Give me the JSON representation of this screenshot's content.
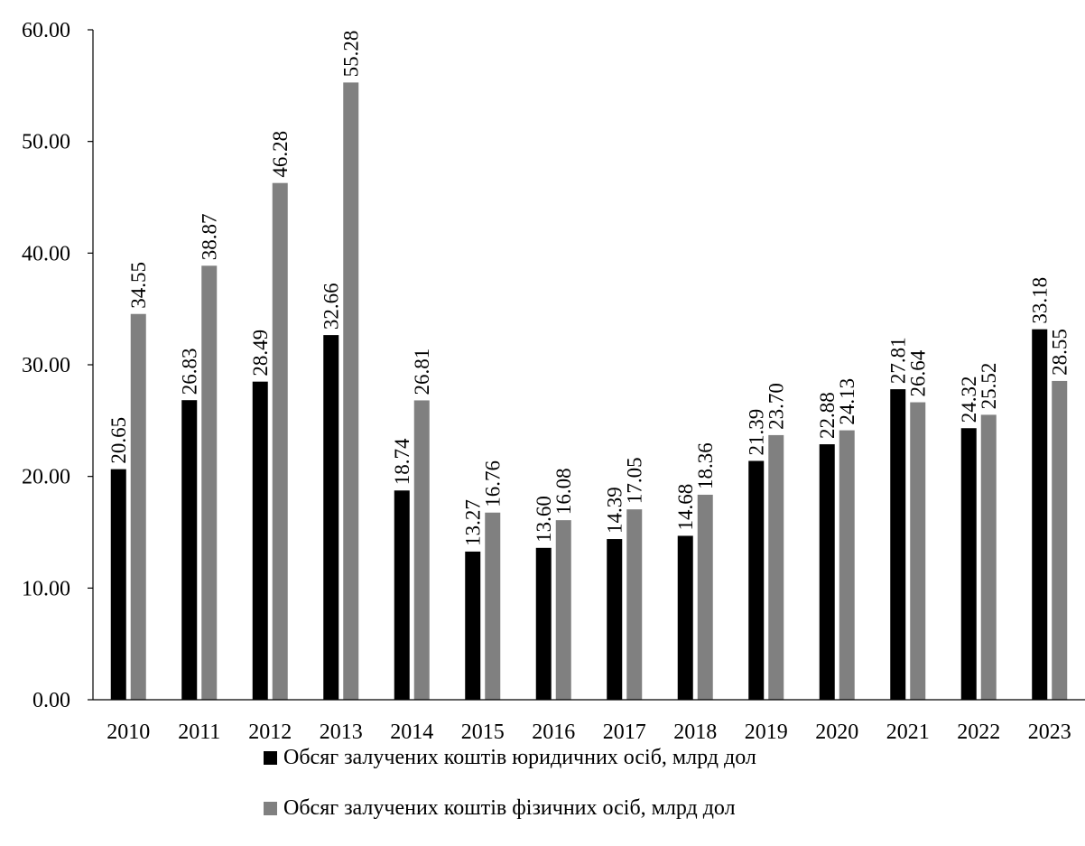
{
  "chart_data": {
    "type": "bar",
    "title": "",
    "xlabel": "",
    "ylabel": "",
    "ylim": [
      0,
      60
    ],
    "yticks": [
      "0.00",
      "10.00",
      "20.00",
      "30.00",
      "40.00",
      "50.00",
      "60.00"
    ],
    "categories": [
      "2010",
      "2011",
      "2012",
      "2013",
      "2014",
      "2015",
      "2016",
      "2017",
      "2018",
      "2019",
      "2020",
      "2021",
      "2022",
      "2023"
    ],
    "series": [
      {
        "name": "Обсяг залучених коштів юридичних осіб, млрд дол",
        "color": "#000000",
        "values": [
          20.65,
          26.83,
          28.49,
          32.66,
          18.74,
          13.27,
          13.6,
          14.39,
          14.68,
          21.39,
          22.88,
          27.81,
          24.32,
          33.18
        ],
        "labels": [
          "20.65",
          "26.83",
          "28.49",
          "32.66",
          "18.74",
          "13.27",
          "13.60",
          "14.39",
          "14.68",
          "21.39",
          "22.88",
          "27.81",
          "24.32",
          "33.18"
        ]
      },
      {
        "name": "Обсяг залучених коштів фізичних осіб, млрд дол",
        "color": "#808080",
        "values": [
          34.55,
          38.87,
          46.28,
          55.28,
          26.81,
          16.76,
          16.08,
          17.05,
          18.36,
          23.7,
          24.13,
          26.64,
          25.52,
          28.55
        ],
        "labels": [
          "34.55",
          "38.87",
          "46.28",
          "55.28",
          "26.81",
          "16.76",
          "16.08",
          "17.05",
          "18.36",
          "23.70",
          "24.13",
          "26.64",
          "25.52",
          "28.55"
        ]
      }
    ],
    "grid": false,
    "legend_position": "bottom"
  }
}
